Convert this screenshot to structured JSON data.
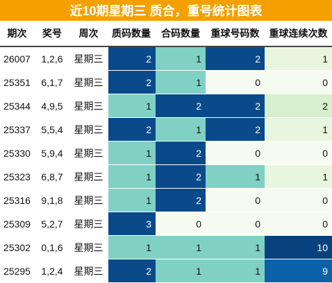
{
  "title": "近10期星期三 质合，重号统计图表",
  "headers": [
    "期次",
    "奖号",
    "周次",
    "质码数量",
    "合码数量",
    "重球号码数",
    "重球连续次数"
  ],
  "rows": [
    {
      "period": "26007",
      "numbers": "1,2,6",
      "weekday": "星期三",
      "prime": 2,
      "composite": 1,
      "repeat": 2,
      "streak": 1
    },
    {
      "period": "25351",
      "numbers": "6,1,7",
      "weekday": "星期三",
      "prime": 2,
      "composite": 1,
      "repeat": 0,
      "streak": 0
    },
    {
      "period": "25344",
      "numbers": "4,9,5",
      "weekday": "星期三",
      "prime": 1,
      "composite": 2,
      "repeat": 2,
      "streak": 2
    },
    {
      "period": "25337",
      "numbers": "5,5,4",
      "weekday": "星期三",
      "prime": 2,
      "composite": 1,
      "repeat": 2,
      "streak": 1
    },
    {
      "period": "25330",
      "numbers": "5,9,4",
      "weekday": "星期三",
      "prime": 1,
      "composite": 2,
      "repeat": 0,
      "streak": 0
    },
    {
      "period": "25323",
      "numbers": "6,8,7",
      "weekday": "星期三",
      "prime": 1,
      "composite": 2,
      "repeat": 1,
      "streak": 1
    },
    {
      "period": "25316",
      "numbers": "9,1,8",
      "weekday": "星期三",
      "prime": 1,
      "composite": 2,
      "repeat": 0,
      "streak": 0
    },
    {
      "period": "25309",
      "numbers": "5,2,7",
      "weekday": "星期三",
      "prime": 3,
      "composite": 0,
      "repeat": 0,
      "streak": 0
    },
    {
      "period": "25302",
      "numbers": "0,1,6",
      "weekday": "星期三",
      "prime": 1,
      "composite": 1,
      "repeat": 1,
      "streak": 10
    },
    {
      "period": "25295",
      "numbers": "1,2,4",
      "weekday": "星期三",
      "prime": 2,
      "composite": 1,
      "repeat": 1,
      "streak": 9
    }
  ],
  "colors": {
    "title_bg": "#f5a000",
    "scale_0": "#f5fbf0",
    "scale_1": "#80d0c4",
    "scale_2": "#0a4a8a",
    "scale_3": "#0a4a8a",
    "streak_0": "#f5fbf0",
    "streak_1": "#e8f6df",
    "streak_2": "#d7efcc",
    "streak_9": "#0b62a8",
    "streak_10": "#08427e"
  }
}
